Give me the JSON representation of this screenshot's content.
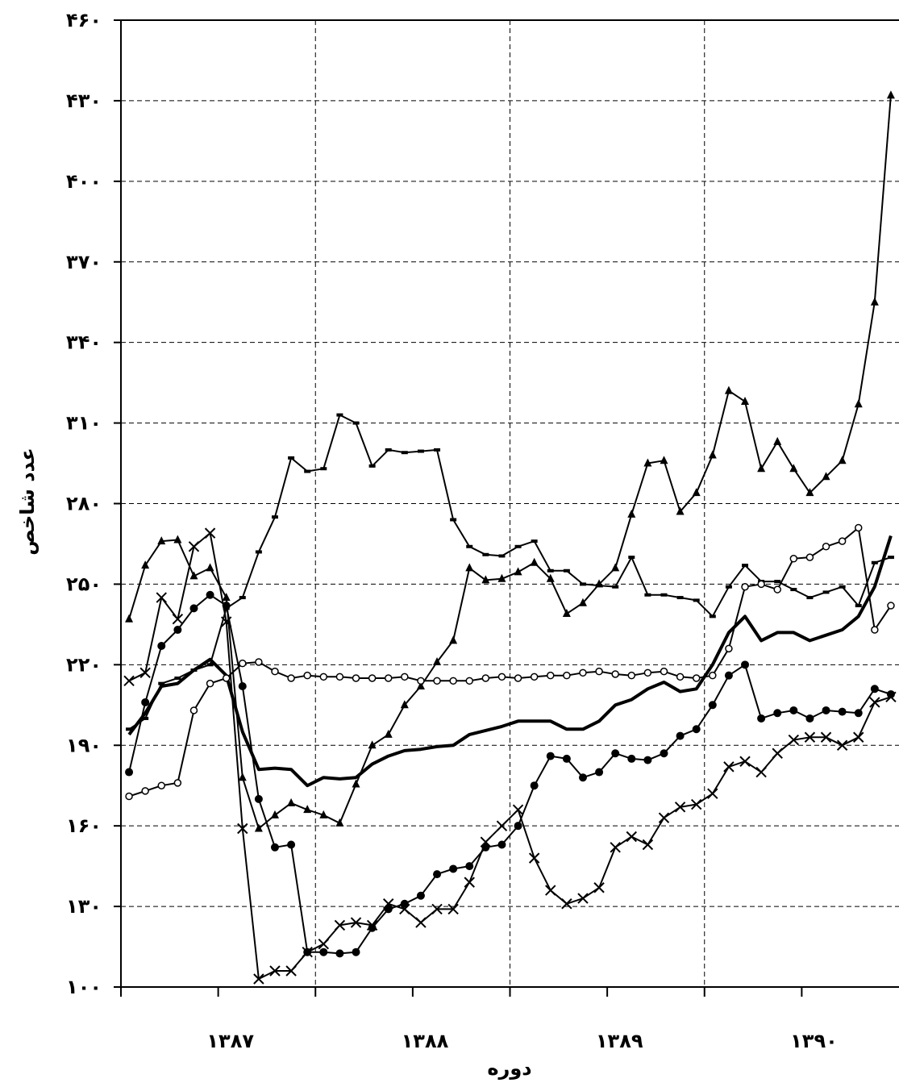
{
  "chart_data": {
    "type": "line",
    "title": "",
    "xlabel": "دوره",
    "ylabel": "عدد شاخص",
    "ylim": [
      100,
      460
    ],
    "yticks": [
      100,
      130,
      160,
      190,
      220,
      250,
      280,
      310,
      340,
      370,
      400,
      430,
      460
    ],
    "ytick_labels": [
      "۱۰۰",
      "۱۳۰",
      "۱۶۰",
      "۱۹۰",
      "۲۲۰",
      "۲۵۰",
      "۲۸۰",
      "۳۱۰",
      "۳۴۰",
      "۳۷۰",
      "۴۰۰",
      "۴۳۰",
      "۴۶۰"
    ],
    "xlim": [
      0,
      48
    ],
    "year_boundaries": [
      6,
      12,
      18,
      24,
      30,
      36,
      42
    ],
    "year_labels": [
      {
        "at": 6.75,
        "text": "۱۳۸۷"
      },
      {
        "at": 18.75,
        "text": "۱۳۸۸"
      },
      {
        "at": 30.75,
        "text": "۱۳۸۹"
      },
      {
        "at": 42.75,
        "text": "۱۳۹۰"
      }
    ],
    "grid": true,
    "series": [
      {
        "marker": "line",
        "width": 4,
        "values": [
          194,
          202,
          212,
          213,
          218,
          222,
          216,
          195,
          181,
          181.5,
          181,
          175,
          178,
          177.5,
          178,
          183,
          186,
          188,
          188.5,
          189.5,
          190,
          194,
          195.5,
          197,
          199,
          199,
          199,
          196,
          196,
          199,
          205,
          207,
          211,
          213.5,
          210,
          211,
          220,
          232,
          238,
          229,
          232,
          232,
          229,
          231,
          233,
          238,
          249,
          268
        ]
      },
      {
        "marker": "triangle",
        "width": 2,
        "values": [
          237,
          257,
          266,
          266.5,
          253,
          256,
          245,
          178,
          159,
          164,
          168.5,
          166,
          164,
          161,
          175.5,
          190,
          194,
          205,
          212,
          221,
          229,
          256,
          251.5,
          252,
          254.5,
          258,
          252,
          239,
          243,
          250,
          256,
          276,
          295,
          296,
          277,
          284,
          298,
          322,
          318,
          293,
          303,
          293,
          284,
          290,
          296,
          317,
          355,
          432
        ]
      },
      {
        "marker": "dash",
        "width": 2,
        "values": [
          196,
          200,
          213,
          215,
          218,
          220,
          241,
          245,
          262,
          275,
          297,
          292,
          293,
          313,
          310,
          294,
          300,
          299,
          299.5,
          300,
          274,
          264,
          261,
          260.5,
          264,
          266,
          255,
          255,
          250,
          249.5,
          249,
          260,
          246,
          246,
          245,
          244,
          238,
          249,
          257,
          251,
          251,
          248,
          245,
          247,
          249,
          242,
          258,
          260
        ]
      },
      {
        "marker": "x",
        "width": 2,
        "values": [
          214,
          217,
          245,
          237,
          264,
          269,
          236,
          159,
          103,
          106,
          106,
          113,
          116,
          123,
          124,
          123,
          131,
          129,
          124,
          129,
          129,
          139,
          154,
          160,
          166,
          148,
          136,
          131,
          133,
          137,
          152,
          156,
          153,
          163,
          167,
          168,
          172,
          182,
          184,
          180,
          187,
          192,
          193,
          193,
          190,
          193,
          206,
          208
        ]
      },
      {
        "marker": "dot",
        "width": 2,
        "values": [
          180,
          206,
          227,
          233,
          241,
          246,
          242,
          212,
          170,
          152,
          153,
          113,
          113,
          112.5,
          113,
          122,
          129,
          131,
          134,
          142,
          144,
          145,
          152,
          153,
          160,
          175,
          186,
          185,
          178,
          180,
          187,
          185,
          184.5,
          187,
          193.5,
          196,
          205,
          216,
          220,
          200,
          202,
          203,
          200,
          203,
          202.5,
          202,
          211,
          209
        ]
      },
      {
        "marker": "circle",
        "width": 2,
        "values": [
          171,
          173,
          175,
          176,
          203,
          213,
          215,
          220.5,
          221,
          217.5,
          215,
          216,
          215.5,
          215.5,
          215,
          215,
          215,
          215.5,
          214,
          214,
          214,
          214,
          215,
          215.5,
          215,
          215.5,
          216,
          216,
          217,
          217.5,
          216.5,
          216,
          217,
          217.5,
          215.5,
          215,
          216,
          226,
          249,
          250,
          248,
          259.5,
          260,
          264,
          266,
          271,
          233,
          242
        ]
      }
    ]
  }
}
